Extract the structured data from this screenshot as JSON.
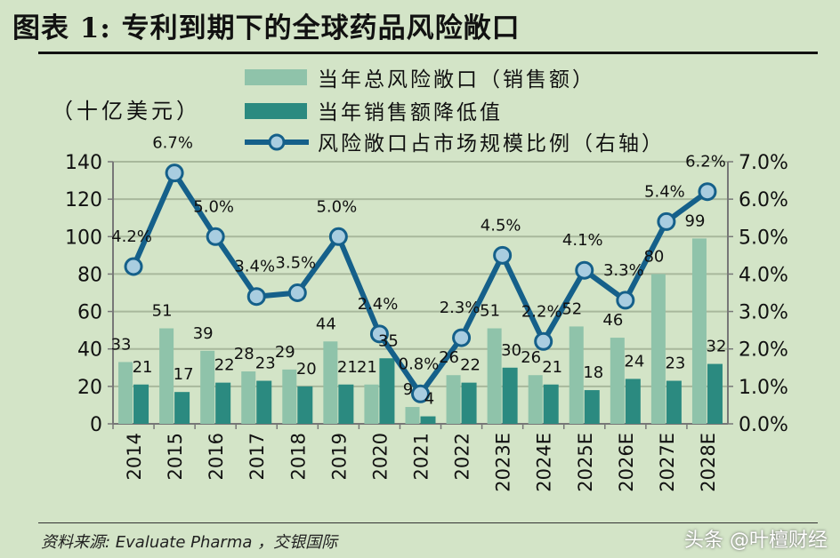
{
  "title": "图表 1: 专利到期下的全球药品风险敞口",
  "source": "资料来源: Evaluate Pharma ，交银国际",
  "watermark": "头条 @叶檀财经",
  "colors": {
    "background": "#d3e4c7",
    "bar_total": "#8fc3aa",
    "bar_loss": "#2b8a80",
    "line": "#15608a",
    "marker": "#a9cde0"
  },
  "chart_data": {
    "type": "bar+line",
    "ylabel": "（十亿美元）",
    "ylim": [
      0,
      140
    ],
    "yticks": [
      "0",
      "20",
      "40",
      "60",
      "80",
      "100",
      "120",
      "140"
    ],
    "y2lim": [
      0,
      7
    ],
    "y2ticks": [
      "0.0%",
      "1.0%",
      "2.0%",
      "3.0%",
      "4.0%",
      "5.0%",
      "6.0%",
      "7.0%"
    ],
    "grid": true,
    "legend_position": "top",
    "categories": [
      "2014",
      "2015",
      "2016",
      "2017",
      "2018",
      "2019",
      "2020",
      "2021",
      "2022",
      "2023E",
      "2024E",
      "2025E",
      "2026E",
      "2027E",
      "2028E"
    ],
    "series": [
      {
        "name": "当年总风险敞口（销售额）",
        "type": "bar",
        "values": [
          33,
          51,
          39,
          28,
          29,
          44,
          21,
          9,
          26,
          51,
          26,
          52,
          46,
          80,
          99
        ]
      },
      {
        "name": "当年销售额降低值",
        "type": "bar",
        "values": [
          21,
          17,
          22,
          23,
          20,
          21,
          35,
          4,
          22,
          30,
          21,
          18,
          24,
          23,
          32
        ]
      },
      {
        "name": "风险敞口占市场规模比例（右轴）",
        "type": "line",
        "axis": "right",
        "values": [
          4.2,
          6.7,
          5.0,
          3.4,
          3.5,
          5.0,
          2.4,
          0.8,
          2.3,
          4.5,
          2.2,
          4.1,
          3.3,
          5.4,
          6.2
        ],
        "labels": [
          "4.2%",
          "6.7%",
          "5.0%",
          "3.4%",
          "3.5%",
          "5.0%",
          "2.4%",
          "0.8%",
          "2.3%",
          "4.5%",
          "2.2%",
          "4.1%",
          "3.3%",
          "5.4%",
          "6.2%"
        ]
      }
    ]
  }
}
